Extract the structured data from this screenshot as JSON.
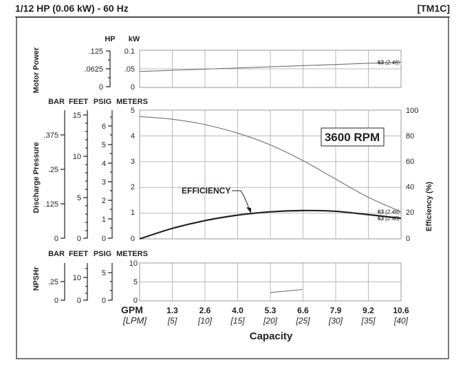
{
  "header": {
    "title": "1/12 HP (0.06 kW) - 60 Hz",
    "code": "[TM1C]"
  },
  "panels": {
    "power": {
      "ylabel": "Motor Power",
      "units": [
        "HP",
        "kW"
      ],
      "hp_ticks": [
        ".125",
        ".0625",
        "0"
      ],
      "kw_ticks": [
        "0.1",
        ".05",
        "0"
      ]
    },
    "pressure": {
      "ylabel": "Discharge Pressure",
      "units": [
        "BAR",
        "FEET",
        "PSIG",
        "METERS"
      ],
      "bar_ticks": [
        ".375",
        ".25",
        ".125",
        "0"
      ],
      "feet_ticks": [
        "15",
        "10",
        "5",
        "0"
      ],
      "psig_ticks": [
        "6",
        "5",
        "4",
        "3",
        "2",
        "1",
        "0"
      ],
      "meters_ticks": [
        "5",
        "4",
        "3",
        "2",
        "1",
        "0"
      ],
      "right_label": "Efficiency (%)",
      "eff_ticks": [
        "100",
        "80",
        "60",
        "40",
        "20",
        "0"
      ],
      "rpm_label": "3600 RPM",
      "efficiency_label": "EFFICIENCY"
    },
    "npshr": {
      "ylabel": "NPSHr",
      "units": [
        "BAR",
        "FEET",
        "PSIG",
        "METERS"
      ],
      "bar_ticks": [
        ".25",
        "0"
      ],
      "feet_ticks": [
        "10",
        "0"
      ],
      "psig_ticks": [
        "5",
        "0"
      ],
      "meters_ticks": [
        "10",
        "5",
        "0"
      ]
    }
  },
  "x_axis": {
    "gpm_label": "GPM",
    "lpm_label": "[LPM]",
    "gpm_ticks": [
      "1.3",
      "2.6",
      "4.0",
      "5.3",
      "6.6",
      "7.9",
      "9.2",
      "10.6"
    ],
    "lpm_ticks": [
      "[5]",
      "[10]",
      "[15]",
      "[20]",
      "[25]",
      "[30]",
      "[35]",
      "[40]"
    ],
    "title": "Capacity"
  },
  "chart_data": [
    {
      "type": "line",
      "panel": "power",
      "x_unit": "GPM",
      "ylabel": "Motor Power",
      "y_unit": "kW",
      "ylim": [
        0,
        0.1
      ],
      "grid": true,
      "series": [
        {
          "x": [
            0,
            10.6
          ],
          "y": [
            0.043,
            0.068
          ],
          "end_label": {
            "num": "63",
            "mm": "(2.48)"
          }
        }
      ]
    },
    {
      "type": "line",
      "panel": "pressure",
      "x_unit": "GPM",
      "ylabel": "Discharge Pressure",
      "y_unit": "METERS",
      "ylim": [
        0,
        5
      ],
      "grid": true,
      "series": [
        {
          "x": [
            0,
            1.3,
            2.6,
            4.0,
            5.3,
            6.6,
            7.9,
            9.2,
            10.6
          ],
          "y": [
            4.75,
            4.65,
            4.45,
            4.1,
            3.65,
            3.05,
            2.35,
            1.65,
            1.05
          ],
          "end_label": {
            "num": "63",
            "mm": "(2.48)"
          }
        }
      ]
    },
    {
      "type": "line",
      "panel": "pressure",
      "x_unit": "GPM",
      "ylabel": "Efficiency (%)",
      "y_unit": "%",
      "ylim": [
        0,
        100
      ],
      "series": [
        {
          "name": "EFFICIENCY",
          "x": [
            0,
            1.3,
            2.6,
            4.0,
            5.3,
            6.6,
            7.9,
            9.2,
            10.6
          ],
          "y": [
            0,
            8,
            14,
            18.5,
            21,
            22,
            21.5,
            19,
            16
          ],
          "end_label": {
            "num": "63",
            "mm": "(2.48)"
          }
        }
      ]
    },
    {
      "type": "line",
      "panel": "npshr",
      "x_unit": "GPM",
      "ylabel": "NPSHr",
      "y_unit": "METERS",
      "ylim": [
        0,
        10
      ],
      "grid": true,
      "series": [
        {
          "x": [
            5.3,
            6.6
          ],
          "y": [
            2.2,
            3.0
          ]
        }
      ]
    }
  ]
}
